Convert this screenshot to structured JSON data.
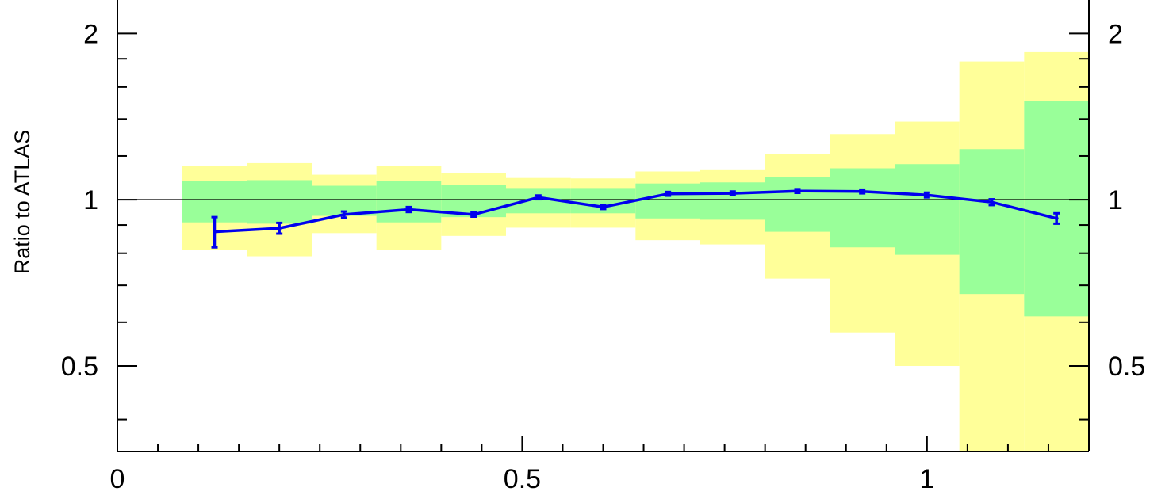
{
  "chart_data": {
    "type": "line",
    "title": "",
    "xlabel": "",
    "ylabel": "Ratio to ATLAS",
    "xlim": [
      0,
      1.2
    ],
    "ylim": [
      0.35,
      2.3
    ],
    "yscale": "log",
    "reference_line": 1,
    "x_tick_labels": [
      {
        "value": 0,
        "label": "0"
      },
      {
        "value": 0.5,
        "label": "0.5"
      },
      {
        "value": 1,
        "label": "1"
      }
    ],
    "y_tick_labels": [
      {
        "value": 0.5,
        "label": "0.5"
      },
      {
        "value": 1,
        "label": "1"
      },
      {
        "value": 2,
        "label": "2"
      }
    ],
    "colors": {
      "line": "#0000ee",
      "inner_band": "#99ff99",
      "outer_band": "#ffff99",
      "frame": "#000000"
    },
    "bins": [
      {
        "x0": 0.08,
        "x1": 0.16,
        "inner": [
          0.91,
          1.08
        ],
        "outer": [
          0.81,
          1.15
        ]
      },
      {
        "x0": 0.16,
        "x1": 0.24,
        "inner": [
          0.905,
          1.085
        ],
        "outer": [
          0.79,
          1.165
        ]
      },
      {
        "x0": 0.24,
        "x1": 0.32,
        "inner": [
          0.935,
          1.06
        ],
        "outer": [
          0.87,
          1.11
        ]
      },
      {
        "x0": 0.32,
        "x1": 0.4,
        "inner": [
          0.91,
          1.08
        ],
        "outer": [
          0.81,
          1.15
        ]
      },
      {
        "x0": 0.4,
        "x1": 0.48,
        "inner": [
          0.93,
          1.063
        ],
        "outer": [
          0.86,
          1.117
        ]
      },
      {
        "x0": 0.48,
        "x1": 0.56,
        "inner": [
          0.945,
          1.05
        ],
        "outer": [
          0.89,
          1.095
        ]
      },
      {
        "x0": 0.56,
        "x1": 0.64,
        "inner": [
          0.945,
          1.05
        ],
        "outer": [
          0.89,
          1.093
        ]
      },
      {
        "x0": 0.64,
        "x1": 0.72,
        "inner": [
          0.925,
          1.07
        ],
        "outer": [
          0.845,
          1.125
        ]
      },
      {
        "x0": 0.72,
        "x1": 0.8,
        "inner": [
          0.92,
          1.075
        ],
        "outer": [
          0.83,
          1.135
        ]
      },
      {
        "x0": 0.8,
        "x1": 0.88,
        "inner": [
          0.875,
          1.1
        ],
        "outer": [
          0.72,
          1.21
        ]
      },
      {
        "x0": 0.88,
        "x1": 0.96,
        "inner": [
          0.82,
          1.14
        ],
        "outer": [
          0.575,
          1.315
        ]
      },
      {
        "x0": 0.96,
        "x1": 1.04,
        "inner": [
          0.795,
          1.16
        ],
        "outer": [
          0.5,
          1.385
        ]
      },
      {
        "x0": 1.04,
        "x1": 1.12,
        "inner": [
          0.675,
          1.235
        ],
        "outer": [
          0.35,
          1.78
        ]
      },
      {
        "x0": 1.12,
        "x1": 1.2,
        "inner": [
          0.615,
          1.51
        ],
        "outer": [
          0.35,
          1.85
        ]
      }
    ],
    "series": [
      {
        "x": [
          0.12,
          0.2,
          0.28,
          0.36,
          0.44,
          0.52,
          0.6,
          0.68,
          0.76,
          0.84,
          0.92,
          1.0,
          1.08,
          1.16
        ],
        "values": [
          0.875,
          0.888,
          0.94,
          0.96,
          0.94,
          1.01,
          0.97,
          1.025,
          1.027,
          1.037,
          1.035,
          1.02,
          0.99,
          0.925
        ],
        "errors": [
          0.055,
          0.02,
          0.012,
          0.01,
          0.008,
          0.008,
          0.008,
          0.008,
          0.008,
          0.008,
          0.008,
          0.01,
          0.012,
          0.02
        ]
      }
    ]
  }
}
